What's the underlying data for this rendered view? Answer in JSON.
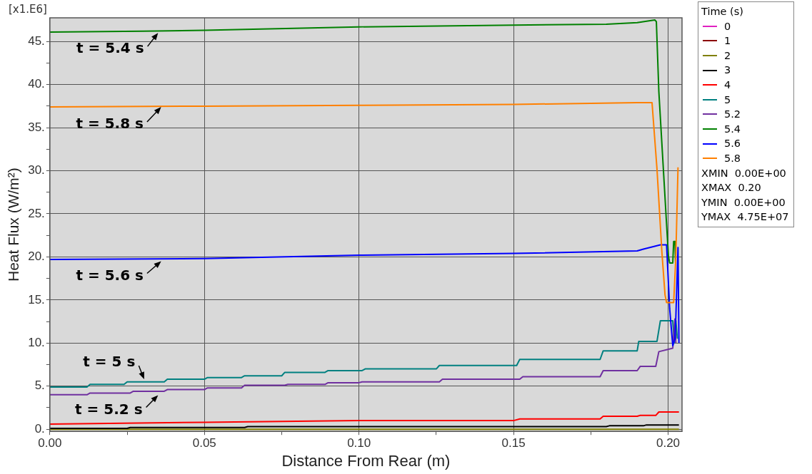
{
  "chart_data": {
    "type": "line",
    "xlabel": "Distance From Rear (m)",
    "ylabel": "Heat Flux (W/m²)",
    "legend_title": "Time (s)",
    "legend": "right",
    "grid": true,
    "marker": "none",
    "line_style": "solid",
    "xlim": [
      0,
      0.2045
    ],
    "ylim": [
      -0.25,
      47.75
    ],
    "xticks": [
      {
        "value": 0,
        "label": "0.00"
      },
      {
        "value": 0.025,
        "label": null
      },
      {
        "value": 0.05,
        "label": "0.05"
      },
      {
        "value": 0.075,
        "label": null
      },
      {
        "value": 0.1,
        "label": "0.10"
      },
      {
        "value": 0.125,
        "label": null
      },
      {
        "value": 0.15,
        "label": "0.15"
      },
      {
        "value": 0.175,
        "label": null
      },
      {
        "value": 0.2,
        "label": "0.20"
      }
    ],
    "yticks": [
      {
        "value": 0,
        "label": "0."
      },
      {
        "value": 2.5,
        "label": null
      },
      {
        "value": 5,
        "label": "5."
      },
      {
        "value": 7.5,
        "label": null
      },
      {
        "value": 10,
        "label": "10."
      },
      {
        "value": 12.5,
        "label": null
      },
      {
        "value": 15,
        "label": "15."
      },
      {
        "value": 17.5,
        "label": null
      },
      {
        "value": 20,
        "label": "20."
      },
      {
        "value": 22.5,
        "label": null
      },
      {
        "value": 25,
        "label": "25."
      },
      {
        "value": 27.5,
        "label": null
      },
      {
        "value": 30,
        "label": "30."
      },
      {
        "value": 32.5,
        "label": null
      },
      {
        "value": 35,
        "label": "35."
      },
      {
        "value": 37.5,
        "label": null
      },
      {
        "value": 40,
        "label": "40."
      },
      {
        "value": 42.5,
        "label": null
      },
      {
        "value": 45,
        "label": "45."
      }
    ],
    "series": [
      {
        "name": "0",
        "color": "#e020c0"
      },
      {
        "name": "1",
        "color": "#8b0000"
      },
      {
        "name": "2",
        "color": "#808000",
        "x": [
          0,
          0.2035
        ],
        "values": [
          0,
          0
        ]
      },
      {
        "name": "3",
        "color": "#000000",
        "x": [
          0,
          0.025,
          0.026,
          0.063,
          0.064,
          0.18,
          0.181,
          0.192,
          0.193,
          0.2035
        ],
        "values": [
          0.1,
          0.1,
          0.2,
          0.2,
          0.3,
          0.3,
          0.4,
          0.4,
          0.5,
          0.5
        ]
      },
      {
        "name": "4",
        "color": "#ff0000",
        "x": [
          0,
          0.05,
          0.1,
          0.15,
          0.152,
          0.178,
          0.179,
          0.19,
          0.191,
          0.196,
          0.197,
          0.2035
        ],
        "values": [
          0.6,
          0.8,
          1.0,
          1.0,
          1.2,
          1.2,
          1.5,
          1.5,
          1.6,
          1.6,
          2.0,
          2.0
        ]
      },
      {
        "name": "5",
        "color": "#008080",
        "x": [
          0,
          0.012,
          0.013,
          0.024,
          0.025,
          0.037,
          0.038,
          0.05,
          0.051,
          0.062,
          0.063,
          0.075,
          0.076,
          0.089,
          0.09,
          0.101,
          0.102,
          0.125,
          0.126,
          0.151,
          0.152,
          0.178,
          0.179,
          0.19,
          0.1905,
          0.1964,
          0.1975,
          0.2015,
          0.202,
          0.2025,
          0.203
        ],
        "values": [
          4.9,
          4.9,
          5.2,
          5.2,
          5.5,
          5.5,
          5.8,
          5.8,
          6.0,
          6.0,
          6.2,
          6.2,
          6.6,
          6.6,
          6.8,
          6.8,
          7.0,
          7.0,
          7.4,
          7.4,
          8.1,
          8.1,
          9.1,
          9.1,
          10.2,
          10.2,
          12.6,
          12.6,
          10,
          12.6,
          10.5
        ]
      },
      {
        "name": "5.2",
        "color": "#7030a0",
        "x": [
          0,
          0.012,
          0.013,
          0.026,
          0.027,
          0.037,
          0.038,
          0.05,
          0.051,
          0.062,
          0.063,
          0.076,
          0.077,
          0.089,
          0.09,
          0.1,
          0.101,
          0.126,
          0.127,
          0.152,
          0.153,
          0.178,
          0.179,
          0.19,
          0.191,
          0.196,
          0.197,
          0.2015,
          0.2022,
          0.2025
        ],
        "values": [
          4.0,
          4.0,
          4.2,
          4.2,
          4.4,
          4.4,
          4.6,
          4.6,
          4.8,
          4.8,
          5.1,
          5.1,
          5.2,
          5.2,
          5.4,
          5.4,
          5.5,
          5.5,
          5.8,
          5.8,
          6.1,
          6.1,
          6.8,
          6.8,
          7.3,
          7.3,
          9.0,
          9.4,
          12.8,
          10
        ]
      },
      {
        "name": "5.4",
        "color": "#008000",
        "x": [
          0,
          0.03,
          0.05,
          0.1,
          0.15,
          0.18,
          0.19,
          0.1957,
          0.1962,
          0.197,
          0.2001,
          0.2005,
          0.2015,
          0.2018,
          0.2022,
          0.2024
        ],
        "values": [
          46.1,
          46.2,
          46.3,
          46.7,
          46.9,
          47.0,
          47.2,
          47.5,
          47.3,
          39.2,
          20.1,
          19.3,
          19.3,
          21.8,
          21.8,
          19.3
        ]
      },
      {
        "name": "5.6",
        "color": "#0000ff",
        "x": [
          0,
          0.05,
          0.1,
          0.15,
          0.19,
          0.192,
          0.1975,
          0.1995,
          0.2005,
          0.2015,
          0.2022,
          0.2025,
          0.2032,
          0.2035
        ],
        "values": [
          19.7,
          19.8,
          20.2,
          20.4,
          20.7,
          20.9,
          21.4,
          21.4,
          14,
          9.7,
          10.5,
          13,
          21.1,
          10
        ]
      },
      {
        "name": "5.8",
        "color": "#ff8000",
        "x": [
          0,
          0.05,
          0.1,
          0.15,
          0.19,
          0.1948,
          0.1964,
          0.198,
          0.199,
          0.1995,
          0.2018,
          0.2025,
          0.2032
        ],
        "values": [
          37.4,
          37.5,
          37.6,
          37.7,
          37.9,
          37.9,
          30.2,
          20.5,
          15.6,
          14.7,
          14.7,
          20,
          30.4
        ]
      }
    ],
    "annotations": [
      "[x1.E6]",
      {
        "text": "t = 5.4 s",
        "x": 0.035,
        "y": 46.0
      },
      {
        "text": "t = 5.8 s",
        "x": 0.036,
        "y": 37.4
      },
      {
        "text": "t = 5.6 s",
        "x": 0.036,
        "y": 19.5
      },
      {
        "text": "t = 5 s",
        "x": 0.0305,
        "y": 5.8
      },
      {
        "text": "t = 5.2 s",
        "x": 0.035,
        "y": 3.95
      },
      "XMIN  0.00E+00",
      "XMAX  0.20",
      "YMIN  0.00E+00",
      "YMAX  4.75E+07"
    ]
  }
}
